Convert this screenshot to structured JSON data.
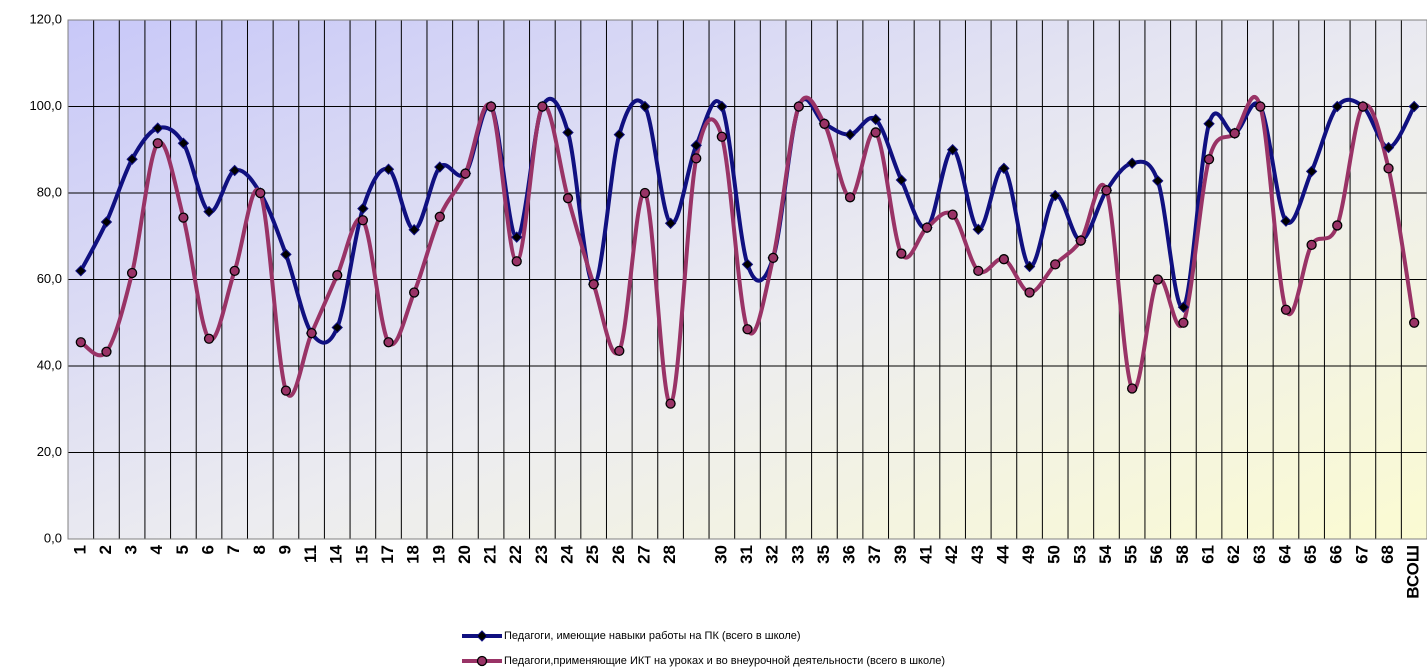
{
  "chart_data": {
    "type": "line",
    "categories": [
      "1",
      "2",
      "3",
      "4",
      "5",
      "6",
      "7",
      "8",
      "9",
      "11",
      "14",
      "15",
      "17",
      "18",
      "19",
      "20",
      "21",
      "22",
      "23",
      "24",
      "25",
      "26",
      "27",
      "28",
      null,
      "30",
      "31",
      "32",
      "33",
      "35",
      "36",
      "37",
      "39",
      "41",
      "42",
      "43",
      "44",
      "49",
      "50",
      "53",
      "54",
      "55",
      "56",
      "58",
      "61",
      "62",
      "63",
      "64",
      "65",
      "66",
      "67",
      "68",
      "ВСОШ"
    ],
    "series": [
      {
        "name": "Педагоги, имеющие навыки работы на ПК (всего в школе)",
        "color": "#101080",
        "marker": "diamond",
        "values": [
          62,
          73.3,
          87.8,
          95,
          91.5,
          75.7,
          85.2,
          80,
          65.8,
          47.6,
          48.9,
          76.4,
          85.5,
          71.5,
          86,
          84.5,
          100,
          69.8,
          100,
          94,
          58.9,
          93.5,
          100,
          73,
          91,
          100,
          63.5,
          65,
          100,
          96,
          93.5,
          97,
          83,
          72,
          90,
          71.6,
          85.7,
          63,
          79.4,
          69,
          80.6,
          86.9,
          82.8,
          53.6,
          96,
          93.8,
          100,
          73.5,
          85,
          100,
          100,
          90.5,
          100
        ]
      },
      {
        "name": "Педагоги,применяющие ИКТ на уроках и во внеурочной деятельности (всего в школе)",
        "color": "#993366",
        "marker": "circle",
        "values": [
          45.5,
          43.3,
          61.5,
          91.5,
          74.3,
          46.3,
          62,
          80,
          34.3,
          47.6,
          61,
          73.7,
          45.5,
          57,
          74.5,
          84.5,
          100,
          64.2,
          100,
          78.8,
          58.9,
          43.5,
          80,
          31.3,
          88,
          93,
          48.5,
          65,
          100,
          96,
          79,
          94,
          66,
          72,
          75,
          62,
          64.7,
          57,
          63.5,
          69,
          80.6,
          34.8,
          60,
          50,
          87.8,
          93.8,
          100,
          53,
          68,
          72.5,
          100,
          85.7,
          50
        ]
      }
    ],
    "ylim": [
      0,
      120
    ],
    "yticks": [
      {
        "value": 0,
        "label": "0,0"
      },
      {
        "value": 20,
        "label": "20,0"
      },
      {
        "value": 40,
        "label": "40,0"
      },
      {
        "value": 60,
        "label": "60,0"
      },
      {
        "value": 80,
        "label": "80,0"
      },
      {
        "value": 100,
        "label": "100,0"
      },
      {
        "value": 120,
        "label": "120,0"
      }
    ],
    "grid": true,
    "legend": "bottom"
  }
}
